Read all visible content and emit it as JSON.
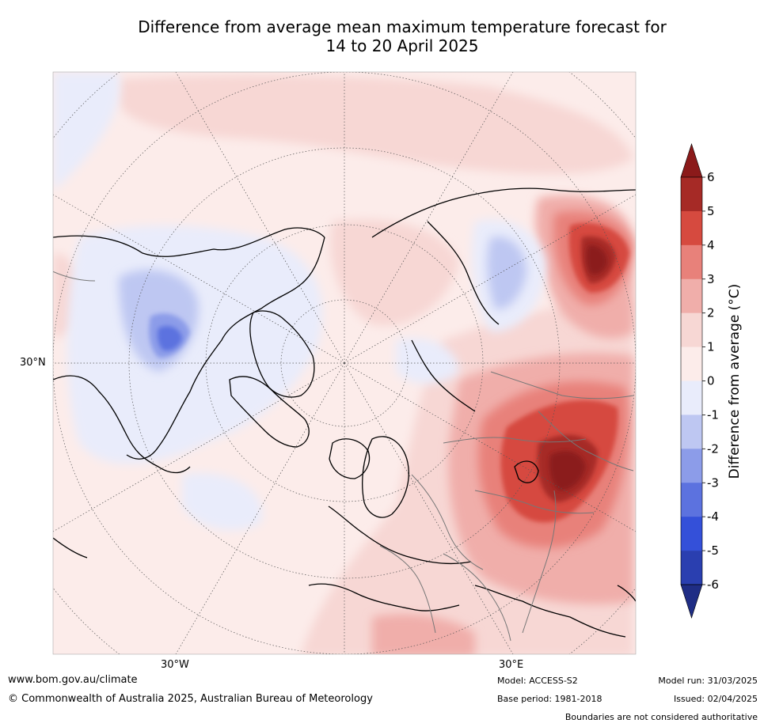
{
  "title_line1": "Difference from average mean maximum temperature forecast for",
  "title_line2": "14 to 20 April 2025",
  "map": {
    "lat_label": "30°N",
    "lon_labels": [
      "30°W",
      "30°E"
    ]
  },
  "colorbar": {
    "label": "Difference from average (°C)",
    "ticks": [
      "6",
      "5",
      "4",
      "3",
      "2",
      "1",
      "0",
      "-1",
      "-2",
      "-3",
      "-4",
      "-5",
      "-6"
    ],
    "colors_top_to_bottom": [
      "#8b1a1a",
      "#a62a26",
      "#d64a3f",
      "#e8817a",
      "#f0aeaa",
      "#f7d7d4",
      "#fcecea",
      "#e9ecfb",
      "#bec7f2",
      "#8c9ce9",
      "#5c72df",
      "#3450d9",
      "#2a3fb0",
      "#1f2d85"
    ]
  },
  "footer": {
    "url": "www.bom.gov.au/climate",
    "copyright": "© Commonwealth of Australia 2025, Australian Bureau of Meteorology",
    "model": "Model: ACCESS-S2",
    "base_period": "Base period: 1981-2018",
    "model_run": "Model run: 31/03/2025",
    "issued": "Issued: 02/04/2025",
    "disclaimer": "Boundaries are not considered authoritative"
  }
}
